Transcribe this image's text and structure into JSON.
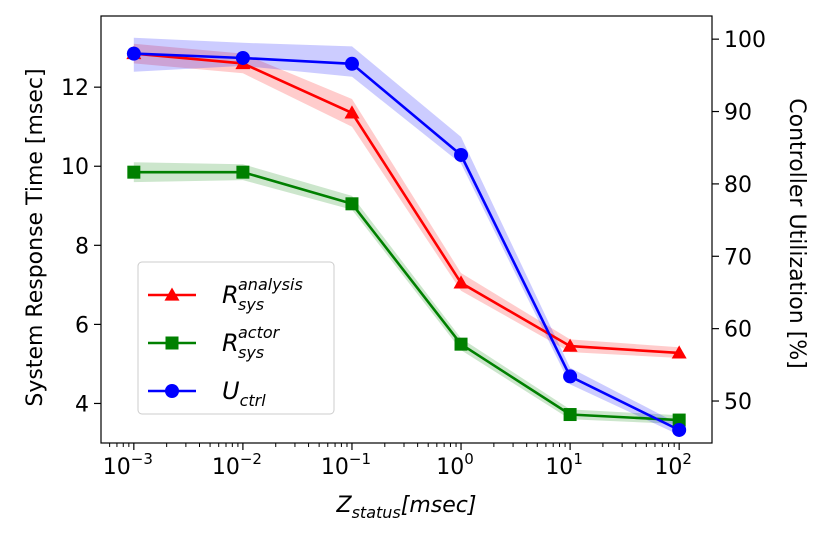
{
  "chart_data": {
    "type": "line",
    "x": [
      0.001,
      0.01,
      0.1,
      1,
      10,
      100
    ],
    "x_scale": "log",
    "xlim": [
      0.0005,
      200
    ],
    "x_ticks": [
      {
        "value": 0.001,
        "base": "10",
        "exp": "−3"
      },
      {
        "value": 0.01,
        "base": "10",
        "exp": "−2"
      },
      {
        "value": 0.1,
        "base": "10",
        "exp": "−1"
      },
      {
        "value": 1,
        "base": "10",
        "exp": "0"
      },
      {
        "value": 10,
        "base": "10",
        "exp": "1"
      },
      {
        "value": 100,
        "base": "10",
        "exp": "2"
      }
    ],
    "xlabel": {
      "main": "Z",
      "sub": "status",
      "rest": "[msec]"
    },
    "ylabel_left": "System Response Time [msec]",
    "ylabel_right": "Controller Utilization [%]",
    "ylim_left": [
      3.0,
      13.8
    ],
    "ylim_right": [
      44.2,
      103.2
    ],
    "y_ticks_left": [
      "4",
      "6",
      "8",
      "10",
      "12"
    ],
    "y_ticks_right": [
      "50",
      "60",
      "70",
      "80",
      "90",
      "100"
    ],
    "legend_position": "lower-left",
    "grid": false,
    "series": [
      {
        "name": "R_sys^analysis",
        "label_main": "R",
        "label_sub": "sys",
        "label_sup": "analysis",
        "axis": "left",
        "color": "#ff0000",
        "marker": "triangle",
        "values": [
          12.85,
          12.6,
          11.35,
          7.05,
          5.45,
          5.28
        ],
        "band_low": [
          12.6,
          12.35,
          11.0,
          6.85,
          5.3,
          5.15
        ],
        "band_high": [
          13.1,
          12.85,
          11.7,
          7.3,
          5.62,
          5.42
        ]
      },
      {
        "name": "R_sys^actor",
        "label_main": "R",
        "label_sub": "sys",
        "label_sup": "actor",
        "axis": "left",
        "color": "#008000",
        "marker": "square",
        "values": [
          9.85,
          9.85,
          9.05,
          5.5,
          3.72,
          3.58
        ],
        "band_low": [
          9.6,
          9.65,
          8.9,
          5.35,
          3.6,
          3.48
        ],
        "band_high": [
          10.1,
          10.05,
          9.25,
          5.65,
          3.85,
          3.7
        ]
      },
      {
        "name": "U_ctrl",
        "label_main": "U",
        "label_sub": "ctrl",
        "label_sup": "",
        "axis": "right",
        "color": "#0000ff",
        "marker": "circle",
        "values": [
          98.0,
          97.4,
          96.6,
          84.0,
          53.4,
          46.0
        ],
        "band_low": [
          95.5,
          96.3,
          94.8,
          82.8,
          52.3,
          45.3
        ],
        "band_high": [
          100.2,
          99.5,
          99.0,
          86.5,
          54.6,
          46.8
        ]
      }
    ]
  }
}
